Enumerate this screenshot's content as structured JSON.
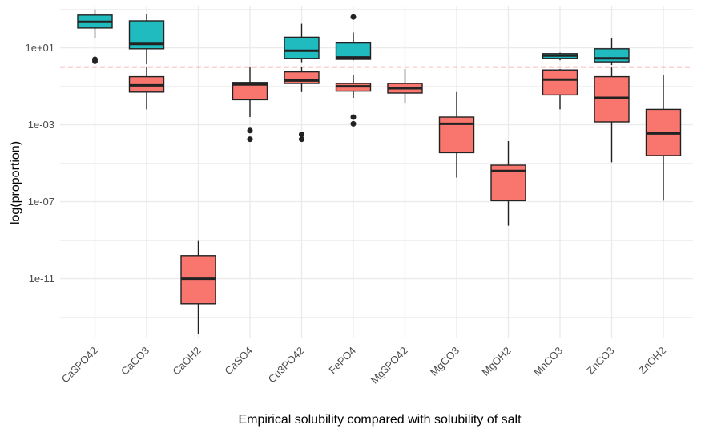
{
  "chart_data": {
    "type": "boxplot",
    "title": "",
    "xlabel": "Empirical solubility compared with solubility of salt",
    "ylabel": "log(proportion)",
    "y_scale": "log10",
    "ylim_log10": [
      -14.1,
      3.15
    ],
    "y_ticks": [
      {
        "value_log10": 1,
        "label": "1e+01"
      },
      {
        "value_log10": -3,
        "label": "1e-03"
      },
      {
        "value_log10": -7,
        "label": "1e-07"
      },
      {
        "value_log10": -11,
        "label": "1e-11"
      }
    ],
    "reference_line": {
      "value_log10": 0,
      "label": "",
      "color": "#ef5350",
      "style": "dashed"
    },
    "categories": [
      "Ca3PO42",
      "CaCO3",
      "CaOH2",
      "CaSO4",
      "Cu3PO42",
      "FePO4",
      "Mg3PO42",
      "MgCO3",
      "MgOH2",
      "MnCO3",
      "ZnCO3",
      "ZnOH2"
    ],
    "colors": {
      "below": "#f8766d",
      "above": "#1fbbbf",
      "stroke": "#222222",
      "grid": "#ebebeb"
    },
    "boxes": [
      {
        "category": "Ca3PO42",
        "group": "above",
        "q1": 2.03,
        "median": 2.35,
        "q3": 2.7,
        "whisker_low": 1.5,
        "whisker_high": 3.0,
        "outliers": [
          0.3,
          0.4
        ]
      },
      {
        "category": "CaCO3",
        "group": "below",
        "q1": -1.3,
        "median": -0.95,
        "q3": -0.5,
        "whisker_low": -2.2,
        "whisker_high": 0.0
      },
      {
        "category": "CaCO3",
        "group": "above",
        "q1": 0.95,
        "median": 1.2,
        "q3": 2.4,
        "whisker_low": 0.15,
        "whisker_high": 2.75
      },
      {
        "category": "CaOH2",
        "group": "below",
        "q1": -12.3,
        "median": -11.0,
        "q3": -9.8,
        "whisker_low": -13.85,
        "whisker_high": -9.0
      },
      {
        "category": "CaSO4",
        "group": "below",
        "q1": -1.7,
        "median": -0.9,
        "q3": -0.8,
        "whisker_low": -2.6,
        "whisker_high": 0.0,
        "outliers": [
          -3.3,
          -3.75
        ]
      },
      {
        "category": "Cu3PO42",
        "group": "below",
        "q1": -0.85,
        "median": -0.7,
        "q3": -0.25,
        "whisker_low": -1.3,
        "whisker_high": 0.0,
        "outliers": [
          -3.5,
          -3.75
        ]
      },
      {
        "category": "Cu3PO42",
        "group": "above",
        "q1": 0.45,
        "median": 0.85,
        "q3": 1.55,
        "whisker_low": 0.25,
        "whisker_high": 2.25
      },
      {
        "category": "FePO4",
        "group": "below",
        "q1": -1.25,
        "median": -1.0,
        "q3": -0.85,
        "whisker_low": -1.6,
        "whisker_high": -0.4,
        "outliers": [
          -2.6,
          -2.95
        ]
      },
      {
        "category": "FePO4",
        "group": "above",
        "q1": 0.4,
        "median": 0.5,
        "q3": 1.25,
        "whisker_low": 0.35,
        "whisker_high": 1.8,
        "outliers": [
          2.6
        ]
      },
      {
        "category": "Mg3PO42",
        "group": "below",
        "q1": -1.35,
        "median": -1.1,
        "q3": -0.85,
        "whisker_low": -1.85,
        "whisker_high": -0.1
      },
      {
        "category": "MgCO3",
        "group": "below",
        "q1": -4.45,
        "median": -2.95,
        "q3": -2.6,
        "whisker_low": -5.75,
        "whisker_high": -1.3
      },
      {
        "category": "MgOH2",
        "group": "below",
        "q1": -6.95,
        "median": -5.4,
        "q3": -5.1,
        "whisker_low": -8.25,
        "whisker_high": -3.85
      },
      {
        "category": "MnCO3",
        "group": "below",
        "q1": -1.45,
        "median": -0.65,
        "q3": -0.15,
        "whisker_low": -2.2,
        "whisker_high": -0.1
      },
      {
        "category": "MnCO3",
        "group": "above",
        "q1": 0.45,
        "median": 0.6,
        "q3": 0.7,
        "whisker_low": 0.35,
        "whisker_high": 0.75
      },
      {
        "category": "ZnCO3",
        "group": "below",
        "q1": -2.85,
        "median": -1.6,
        "q3": -0.5,
        "whisker_low": -4.95,
        "whisker_high": 0.0
      },
      {
        "category": "ZnCO3",
        "group": "above",
        "q1": 0.27,
        "median": 0.45,
        "q3": 0.95,
        "whisker_low": 0.1,
        "whisker_high": 1.5
      },
      {
        "category": "ZnOH2",
        "group": "below",
        "q1": -4.6,
        "median": -3.45,
        "q3": -2.2,
        "whisker_low": -6.95,
        "whisker_high": -0.4
      }
    ]
  }
}
